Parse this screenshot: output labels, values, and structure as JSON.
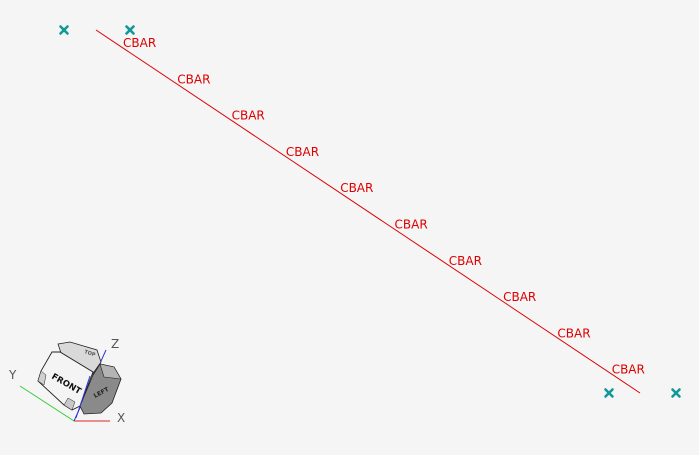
{
  "viewport": {
    "background": "#f5f5f5"
  },
  "model": {
    "element_type": "CBAR",
    "element_count": 10,
    "element_labels": [
      "CBAR",
      "CBAR",
      "CBAR",
      "CBAR",
      "CBAR",
      "CBAR",
      "CBAR",
      "CBAR",
      "CBAR",
      "CBAR"
    ],
    "element_color": "#dd0000",
    "constraint_marker_icon": "x-cross-icon",
    "constraint_marker_color": "#119999",
    "constraint_marker_count": 4
  },
  "view_cube": {
    "faces": {
      "front": "FRONT",
      "left": "LEFT",
      "top": "TOP"
    },
    "axes": {
      "x": "X",
      "y": "Y",
      "z": "Z"
    },
    "axis_colors": {
      "x": "#dd2222",
      "y": "#33cc33",
      "z": "#3333dd"
    }
  }
}
